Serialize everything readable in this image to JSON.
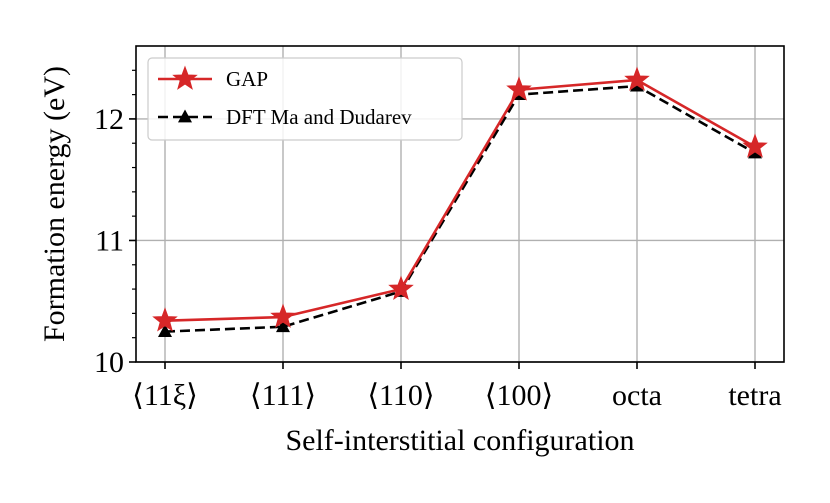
{
  "chart_data": {
    "type": "line",
    "title": "",
    "xlabel": "Self-interstitial configuration",
    "ylabel": "Formation energy (eV)",
    "categories": [
      "⟨11ξ⟩",
      "⟨111⟩",
      "⟨110⟩",
      "⟨100⟩",
      "octa",
      "tetra"
    ],
    "ylim": [
      10.0,
      12.6
    ],
    "yticks": [
      10,
      11,
      12
    ],
    "yticks_minor": [
      10.2,
      10.4,
      10.6,
      10.8,
      11.2,
      11.4,
      11.6,
      11.8,
      12.2,
      12.4
    ],
    "grid": true,
    "legend_position": "top-left",
    "series": [
      {
        "name": "GAP",
        "values": [
          10.34,
          10.37,
          10.6,
          12.24,
          12.32,
          11.77
        ],
        "color": "#d62728",
        "line_style": "solid",
        "marker": "star"
      },
      {
        "name": "DFT Ma and Dudarev",
        "values": [
          10.25,
          10.29,
          10.58,
          12.2,
          12.27,
          11.72
        ],
        "color": "#000000",
        "line_style": "dashed",
        "marker": "triangle"
      }
    ]
  }
}
